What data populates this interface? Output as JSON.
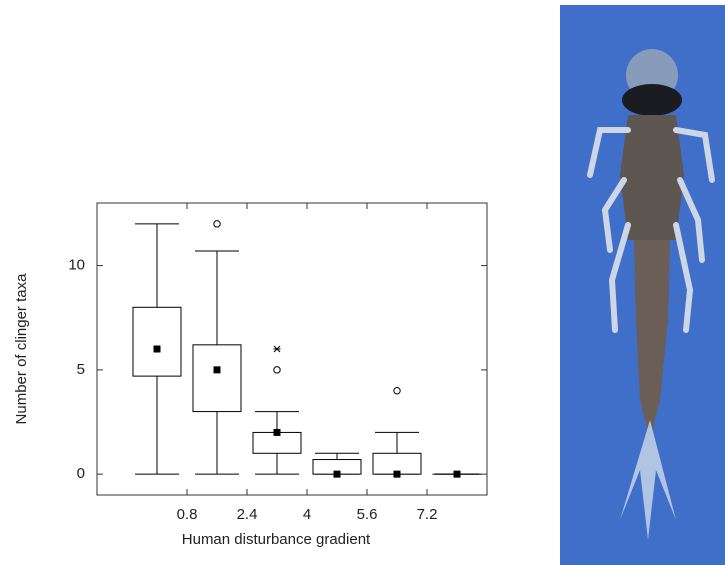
{
  "chart_data": {
    "type": "box",
    "xlabel": "Human disturbance gradient",
    "ylabel": "Number of clinger taxa",
    "x": [
      0,
      1.6,
      3.2,
      4.8,
      6.4,
      8.0
    ],
    "whisker_low": [
      0,
      0,
      0,
      0,
      0,
      0
    ],
    "q1": [
      4.7,
      3,
      1,
      0,
      0,
      0
    ],
    "median": [
      6,
      5,
      2,
      0,
      0,
      0
    ],
    "q3": [
      8,
      6.2,
      2,
      0.7,
      1,
      0
    ],
    "whisker_high": [
      12,
      10.7,
      3,
      1,
      2,
      0
    ],
    "outliers": [
      [],
      [
        12
      ],
      [
        5
      ],
      [],
      [
        4
      ],
      []
    ],
    "extremes": [
      [],
      [],
      [
        6
      ],
      [],
      [],
      []
    ],
    "xlim": [
      -1.6,
      8.8
    ],
    "xticks": [
      0.8,
      2.4,
      4,
      5.6,
      7.2
    ],
    "ylim": [
      -1,
      13
    ],
    "yticks": [
      0,
      5,
      10
    ],
    "color": "#000000"
  }
}
